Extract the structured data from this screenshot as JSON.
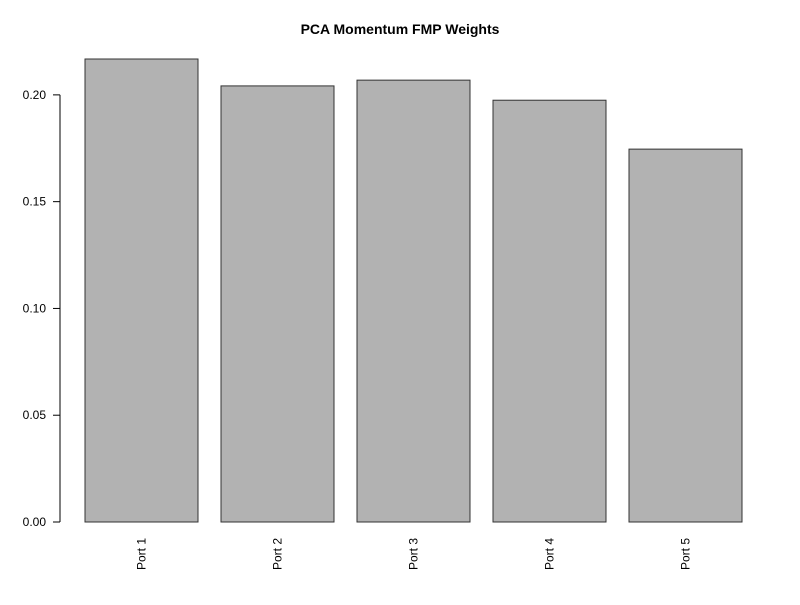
{
  "chart_data": {
    "type": "bar",
    "title": "PCA Momentum FMP Weights",
    "xlabel": "",
    "ylabel": "",
    "categories": [
      "Port 1",
      "Port 2",
      "Port 3",
      "Port 4",
      "Port 5"
    ],
    "values": [
      0.2168,
      0.2042,
      0.2069,
      0.1975,
      0.1746
    ],
    "ylim": [
      0,
      0.2168
    ],
    "y_ticks": [
      "0.00",
      "0.05",
      "0.10",
      "0.15",
      "0.20"
    ],
    "bar_color": "#b2b2b2",
    "border_color": "#333333",
    "grid": false,
    "legend": "none"
  }
}
